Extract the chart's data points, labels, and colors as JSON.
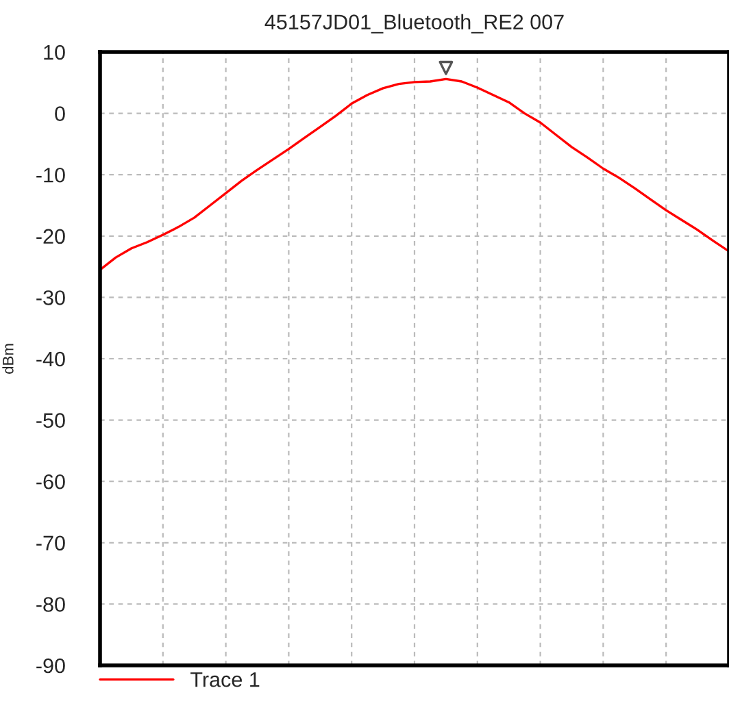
{
  "chart_data": {
    "type": "line",
    "title": "45157JD01_Bluetooth_RE2 007",
    "ylabel": "dBm",
    "categories": [
      null,
      null,
      null,
      null,
      null,
      null,
      null,
      null,
      null,
      null,
      null,
      null,
      null,
      null,
      null,
      null,
      null,
      null,
      null,
      null,
      null,
      null,
      null,
      null,
      null,
      null,
      null,
      null,
      null,
      null,
      null,
      null,
      null,
      null,
      null,
      null,
      null,
      null,
      null,
      null,
      null
    ],
    "series": [
      {
        "name": "Trace 1",
        "color": "#ff0000",
        "values": [
          -25.5,
          -23.5,
          -22,
          -21,
          -19.8,
          -18.5,
          -17,
          -15,
          -13,
          -11,
          -9.2,
          -7.5,
          -5.8,
          -4,
          -2.2,
          -0.4,
          1.6,
          3,
          4.1,
          4.8,
          5.1,
          5.2,
          5.6,
          5.2,
          4.2,
          3,
          1.8,
          0,
          -1.5,
          -3.5,
          -5.5,
          -7.2,
          -9,
          -10.5,
          -12.2,
          -14,
          -15.8,
          -17.4,
          -19,
          -20.8,
          -22.5
        ]
      },
      {
        "type": "scatter",
        "marker": "triangle",
        "color": "#555555",
        "values": [
          null,
          null,
          null,
          null,
          null,
          null,
          null,
          null,
          null,
          null,
          null,
          null,
          null,
          null,
          null,
          null,
          null,
          null,
          null,
          null,
          null,
          null,
          7.4,
          null,
          null,
          null,
          null,
          null,
          null,
          null,
          null,
          null,
          null,
          null,
          null,
          null,
          null,
          null,
          null,
          null,
          null
        ]
      }
    ],
    "ylim": [
      -90,
      10
    ],
    "yticks": [
      -90,
      -80,
      -70,
      -60,
      -50,
      -40,
      -30,
      -20,
      -10,
      0,
      10
    ],
    "grid": true,
    "legend": "bottom left",
    "tick_labels": "y",
    "marker": "none",
    "line_style": "solid"
  }
}
